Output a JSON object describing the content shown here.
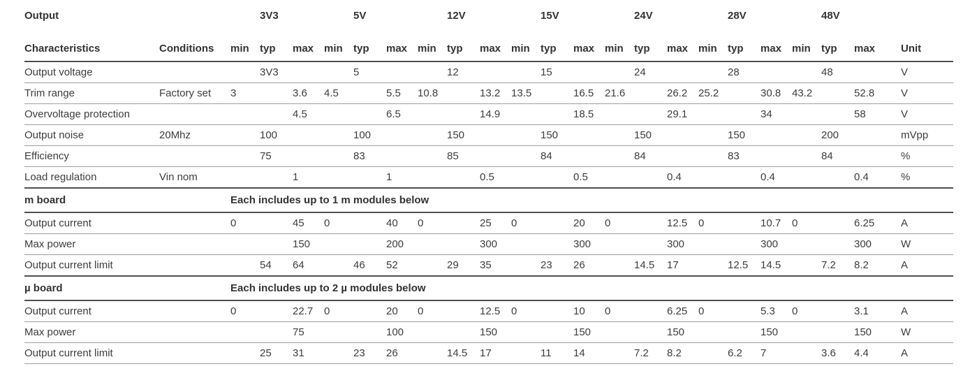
{
  "colors": {
    "text": "#3d3d3d",
    "heading_text": "#333333",
    "row_line": "#9e9e9e",
    "section_line": "#4f4f4f",
    "background": "#ffffff"
  },
  "table": {
    "header": {
      "title_line1": "Output",
      "title_line2": "Characteristics",
      "conditions": "Conditions",
      "unit": "Unit",
      "subcolumns": [
        "min",
        "typ",
        "max"
      ],
      "rails": [
        "3V3",
        "5V",
        "12V",
        "15V",
        "24V",
        "28V",
        "48V"
      ]
    },
    "rows": [
      {
        "type": "data",
        "name": "Output voltage",
        "conditions": "",
        "groups": [
          {
            "typ": "3V3"
          },
          {
            "typ": "5"
          },
          {
            "typ": "12"
          },
          {
            "typ": "15"
          },
          {
            "typ": "24"
          },
          {
            "typ": "28"
          },
          {
            "typ": "48"
          }
        ],
        "unit": "V"
      },
      {
        "type": "data",
        "name": "Trim range",
        "conditions": "Factory set",
        "groups": [
          {
            "min": "3",
            "max": "3.6"
          },
          {
            "min": "4.5",
            "max": "5.5"
          },
          {
            "min": "10.8",
            "max": "13.2"
          },
          {
            "min": "13.5",
            "max": "16.5"
          },
          {
            "min": "21.6",
            "max": "26.2"
          },
          {
            "min": "25.2",
            "max": "30.8"
          },
          {
            "min": "43.2",
            "max": "52.8"
          }
        ],
        "unit": "V"
      },
      {
        "type": "data",
        "name": "Overvoltage protection",
        "conditions": "",
        "groups": [
          {
            "max": "4.5"
          },
          {
            "max": "6.5"
          },
          {
            "max": "14.9"
          },
          {
            "max": "18.5"
          },
          {
            "max": "29.1"
          },
          {
            "max": "34"
          },
          {
            "max": "58"
          }
        ],
        "unit": "V"
      },
      {
        "type": "data",
        "name": "Output noise",
        "conditions": "20Mhz",
        "groups": [
          {
            "typ": "100"
          },
          {
            "typ": "100"
          },
          {
            "typ": "150"
          },
          {
            "typ": "150"
          },
          {
            "typ": "150"
          },
          {
            "typ": "150"
          },
          {
            "typ": "200"
          }
        ],
        "unit": "mVpp"
      },
      {
        "type": "data",
        "name": "Efficiency",
        "conditions": "",
        "groups": [
          {
            "typ": "75"
          },
          {
            "typ": "83"
          },
          {
            "typ": "85"
          },
          {
            "typ": "84"
          },
          {
            "typ": "84"
          },
          {
            "typ": "83"
          },
          {
            "typ": "84"
          }
        ],
        "unit": "%"
      },
      {
        "type": "data",
        "name": "Load regulation",
        "conditions": "Vin nom",
        "groups": [
          {
            "max": "1"
          },
          {
            "max": "1"
          },
          {
            "max": "0.5"
          },
          {
            "max": "0.5"
          },
          {
            "max": "0.4"
          },
          {
            "max": "0.4"
          },
          {
            "max": "0.4"
          }
        ],
        "unit": "%"
      },
      {
        "type": "section",
        "name": "m board",
        "note": "Each includes up to 1 m modules below"
      },
      {
        "type": "data",
        "name": "Output current",
        "conditions": "",
        "groups": [
          {
            "min": "0",
            "max": "45"
          },
          {
            "min": "0",
            "max": "40"
          },
          {
            "min": "0",
            "max": "25"
          },
          {
            "min": "0",
            "max": "20"
          },
          {
            "min": "0",
            "max": "12.5"
          },
          {
            "min": "0",
            "max": "10.7"
          },
          {
            "min": "0",
            "max": "6.25"
          }
        ],
        "unit": "A"
      },
      {
        "type": "data",
        "name": "Max power",
        "conditions": "",
        "groups": [
          {
            "max": "150"
          },
          {
            "max": "200"
          },
          {
            "max": "300"
          },
          {
            "max": "300"
          },
          {
            "max": "300"
          },
          {
            "max": "300"
          },
          {
            "max": "300"
          }
        ],
        "unit": "W"
      },
      {
        "type": "data",
        "name": "Output current limit",
        "conditions": "",
        "groups": [
          {
            "typ": "54",
            "max": "64"
          },
          {
            "typ": "46",
            "max": "52"
          },
          {
            "typ": "29",
            "max": "35"
          },
          {
            "typ": "23",
            "max": "26"
          },
          {
            "typ": "14.5",
            "max": "17"
          },
          {
            "typ": "12.5",
            "max": "14.5"
          },
          {
            "typ": "7.2",
            "max": "8.2"
          }
        ],
        "unit": "A"
      },
      {
        "type": "section",
        "name": "µ board",
        "note": "Each includes up to 2 µ modules below"
      },
      {
        "type": "data",
        "name": "Output current",
        "conditions": "",
        "groups": [
          {
            "min": "0",
            "max": "22.7"
          },
          {
            "min": "0",
            "max": "20"
          },
          {
            "min": "0",
            "max": "12.5"
          },
          {
            "min": "0",
            "max": "10"
          },
          {
            "min": "0",
            "max": "6.25"
          },
          {
            "min": "0",
            "max": "5.3"
          },
          {
            "min": "0",
            "max": "3.1"
          }
        ],
        "unit": "A"
      },
      {
        "type": "data",
        "name": "Max power",
        "conditions": "",
        "groups": [
          {
            "max": "75"
          },
          {
            "max": "100"
          },
          {
            "max": "150"
          },
          {
            "max": "150"
          },
          {
            "max": "150"
          },
          {
            "max": "150"
          },
          {
            "max": "150"
          }
        ],
        "unit": "W"
      },
      {
        "type": "data",
        "name": "Output current limit",
        "conditions": "",
        "groups": [
          {
            "typ": "25",
            "max": "31"
          },
          {
            "typ": "23",
            "max": "26"
          },
          {
            "typ": "14.5",
            "max": "17"
          },
          {
            "typ": "11",
            "max": "14"
          },
          {
            "typ": "7.2",
            "max": "8.2"
          },
          {
            "typ": "6.2",
            "max": "7"
          },
          {
            "typ": "3.6",
            "max": "4.4"
          }
        ],
        "unit": "A"
      }
    ]
  }
}
